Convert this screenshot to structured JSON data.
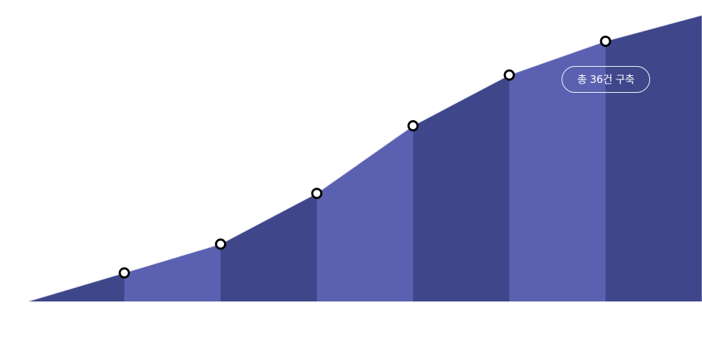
{
  "chart_data": {
    "type": "area",
    "title": "",
    "xlabel": "",
    "ylabel": "",
    "grid": false,
    "legend": "none",
    "x": [
      0,
      1,
      2,
      3,
      4,
      5,
      6,
      7
    ],
    "values": [
      0,
      10.8,
      21.7,
      40.9,
      66.5,
      85.7,
      98.5,
      108.3
    ],
    "ylim": [
      0,
      114.1
    ],
    "marker_indices": [
      1,
      2,
      3,
      4,
      5,
      6
    ],
    "band_colors": [
      "#3f468a",
      "#5b61b0"
    ],
    "marker_fill": "#ffffff",
    "marker_stroke": "#000000",
    "annotation": {
      "text": "총 36건 구축",
      "color": "#ffffff"
    }
  }
}
